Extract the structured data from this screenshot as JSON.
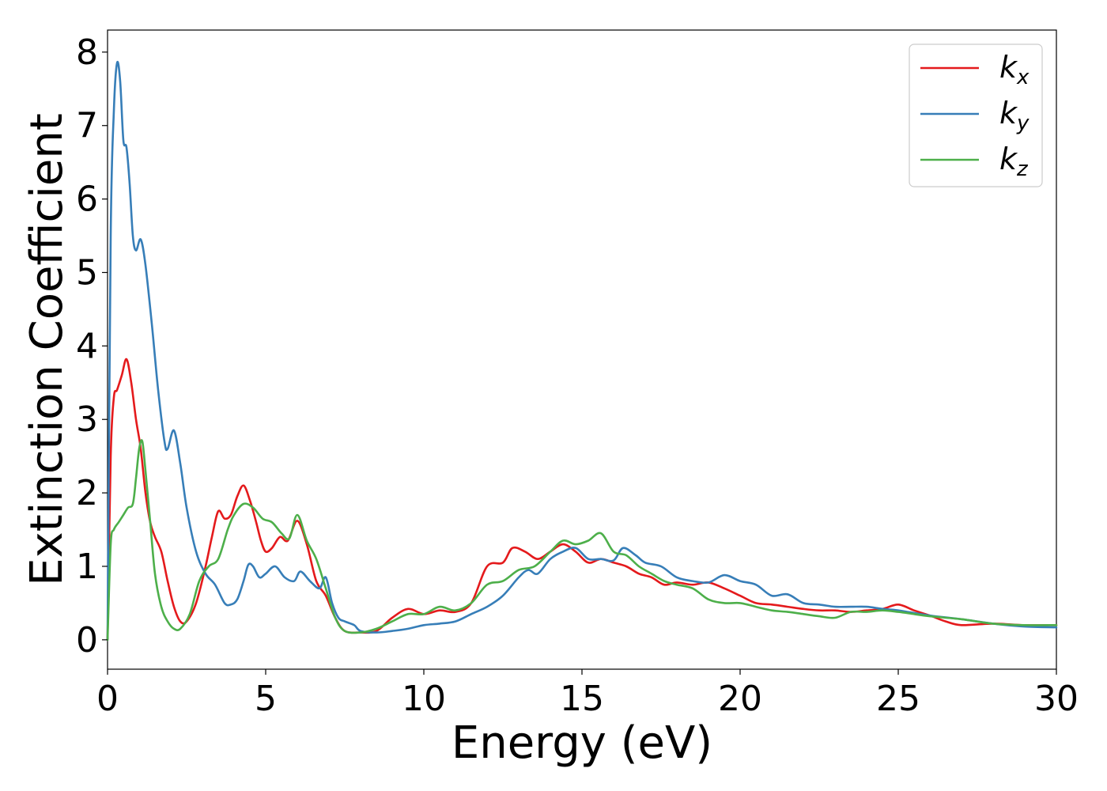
{
  "chart_data": {
    "type": "line",
    "xlabel": "Energy (eV)",
    "ylabel": "Extinction Coefficient",
    "xlim": [
      0,
      30
    ],
    "ylim": [
      -0.4,
      8.3
    ],
    "xticks": [
      0,
      5,
      10,
      15,
      20,
      25,
      30
    ],
    "yticks": [
      0,
      1,
      2,
      3,
      4,
      5,
      6,
      7,
      8
    ],
    "grid": false,
    "legend_position": "top-right",
    "series": [
      {
        "name": "k",
        "subscript": "x",
        "color": "#e41a1c",
        "x": [
          0,
          0.1,
          0.2,
          0.3,
          0.45,
          0.6,
          0.75,
          0.9,
          1.05,
          1.2,
          1.35,
          1.5,
          1.7,
          1.9,
          2.1,
          2.3,
          2.5,
          2.8,
          3.1,
          3.3,
          3.5,
          3.7,
          3.9,
          4.1,
          4.3,
          4.5,
          4.7,
          4.85,
          5.0,
          5.2,
          5.45,
          5.7,
          6.0,
          6.3,
          6.6,
          6.9,
          7.2,
          7.5,
          8.0,
          8.5,
          9.0,
          9.5,
          10.0,
          10.5,
          11.0,
          11.5,
          12.0,
          12.5,
          12.8,
          13.2,
          13.6,
          14.0,
          14.4,
          14.8,
          15.2,
          15.6,
          16.0,
          16.4,
          16.8,
          17.2,
          17.6,
          18.0,
          18.5,
          19.0,
          19.5,
          20.0,
          20.5,
          21.0,
          21.5,
          22.0,
          22.5,
          23.0,
          23.5,
          24.0,
          24.5,
          25.0,
          25.5,
          26.0,
          26.5,
          27.0,
          28.0,
          29.0,
          30.0
        ],
        "y": [
          0,
          2.5,
          3.3,
          3.4,
          3.6,
          3.82,
          3.5,
          3.0,
          2.6,
          2.0,
          1.6,
          1.4,
          1.2,
          0.8,
          0.45,
          0.25,
          0.25,
          0.5,
          1.0,
          1.4,
          1.75,
          1.65,
          1.7,
          1.95,
          2.1,
          1.9,
          1.6,
          1.35,
          1.2,
          1.25,
          1.4,
          1.35,
          1.62,
          1.3,
          0.8,
          0.6,
          0.3,
          0.12,
          0.1,
          0.12,
          0.3,
          0.42,
          0.35,
          0.4,
          0.38,
          0.5,
          1.0,
          1.05,
          1.25,
          1.2,
          1.1,
          1.2,
          1.3,
          1.2,
          1.05,
          1.1,
          1.05,
          1.0,
          0.9,
          0.85,
          0.75,
          0.78,
          0.75,
          0.78,
          0.7,
          0.6,
          0.5,
          0.48,
          0.45,
          0.42,
          0.4,
          0.4,
          0.38,
          0.4,
          0.42,
          0.48,
          0.4,
          0.33,
          0.25,
          0.2,
          0.22,
          0.2,
          0.2
        ]
      },
      {
        "name": "k",
        "subscript": "y",
        "color": "#377eb8",
        "x": [
          0,
          0.1,
          0.2,
          0.3,
          0.4,
          0.5,
          0.6,
          0.7,
          0.8,
          0.9,
          1.05,
          1.2,
          1.4,
          1.6,
          1.8,
          1.9,
          2.1,
          2.3,
          2.5,
          2.8,
          3.1,
          3.4,
          3.7,
          3.9,
          4.1,
          4.3,
          4.45,
          4.6,
          4.8,
          5.0,
          5.3,
          5.6,
          5.9,
          6.1,
          6.4,
          6.7,
          6.9,
          7.1,
          7.3,
          7.5,
          7.8,
          8.0,
          8.5,
          9.0,
          9.5,
          10.0,
          10.5,
          11.0,
          11.5,
          12.0,
          12.5,
          13.0,
          13.3,
          13.6,
          14.0,
          14.4,
          14.8,
          15.2,
          15.6,
          16.0,
          16.3,
          16.7,
          17.0,
          17.5,
          18.0,
          18.5,
          19.0,
          19.5,
          20.0,
          20.5,
          21.0,
          21.5,
          22.0,
          22.5,
          23.0,
          23.5,
          24.0,
          24.5,
          25.0,
          26.0,
          27.0,
          28.0,
          29.0,
          30.0
        ],
        "y": [
          0,
          5.5,
          7.2,
          7.85,
          7.6,
          6.8,
          6.7,
          6.2,
          5.5,
          5.3,
          5.45,
          5.1,
          4.3,
          3.4,
          2.7,
          2.6,
          2.85,
          2.4,
          1.8,
          1.2,
          0.9,
          0.75,
          0.5,
          0.48,
          0.55,
          0.8,
          1.02,
          1.0,
          0.85,
          0.9,
          1.0,
          0.85,
          0.8,
          0.93,
          0.8,
          0.7,
          0.85,
          0.5,
          0.3,
          0.25,
          0.2,
          0.12,
          0.1,
          0.12,
          0.15,
          0.2,
          0.22,
          0.25,
          0.35,
          0.45,
          0.6,
          0.85,
          0.95,
          0.9,
          1.1,
          1.2,
          1.25,
          1.1,
          1.1,
          1.08,
          1.25,
          1.15,
          1.05,
          1.0,
          0.85,
          0.8,
          0.78,
          0.88,
          0.8,
          0.75,
          0.6,
          0.62,
          0.5,
          0.48,
          0.45,
          0.45,
          0.45,
          0.42,
          0.4,
          0.33,
          0.28,
          0.22,
          0.18,
          0.17
        ]
      },
      {
        "name": "k",
        "subscript": "z",
        "color": "#4daf4a",
        "x": [
          0,
          0.1,
          0.2,
          0.35,
          0.5,
          0.65,
          0.8,
          0.9,
          1.0,
          1.1,
          1.2,
          1.35,
          1.5,
          1.7,
          1.9,
          2.1,
          2.3,
          2.6,
          2.9,
          3.2,
          3.5,
          3.8,
          4.0,
          4.3,
          4.6,
          4.9,
          5.2,
          5.5,
          5.75,
          6.0,
          6.3,
          6.6,
          6.9,
          7.2,
          7.5,
          8.0,
          8.5,
          9.0,
          9.5,
          10.0,
          10.5,
          11.0,
          11.5,
          12.0,
          12.5,
          13.0,
          13.5,
          14.0,
          14.4,
          14.8,
          15.2,
          15.6,
          16.0,
          16.4,
          16.8,
          17.2,
          17.6,
          18.0,
          18.5,
          19.0,
          19.5,
          20.0,
          20.5,
          21.0,
          21.5,
          22.0,
          22.5,
          23.0,
          23.5,
          24.0,
          24.5,
          25.0,
          25.5,
          26.0,
          27.0,
          28.0,
          29.0,
          30.0
        ],
        "y": [
          0,
          1.3,
          1.5,
          1.6,
          1.7,
          1.8,
          1.85,
          2.2,
          2.6,
          2.7,
          2.3,
          1.6,
          0.9,
          0.45,
          0.25,
          0.15,
          0.15,
          0.35,
          0.8,
          1.0,
          1.1,
          1.5,
          1.7,
          1.85,
          1.8,
          1.65,
          1.6,
          1.45,
          1.38,
          1.7,
          1.35,
          1.1,
          0.7,
          0.3,
          0.12,
          0.1,
          0.15,
          0.25,
          0.35,
          0.35,
          0.45,
          0.4,
          0.5,
          0.75,
          0.8,
          0.95,
          1.0,
          1.2,
          1.35,
          1.3,
          1.35,
          1.45,
          1.2,
          1.15,
          1.0,
          0.9,
          0.8,
          0.75,
          0.7,
          0.55,
          0.5,
          0.5,
          0.45,
          0.4,
          0.38,
          0.35,
          0.32,
          0.3,
          0.38,
          0.38,
          0.4,
          0.38,
          0.35,
          0.32,
          0.28,
          0.22,
          0.2,
          0.2
        ]
      }
    ]
  }
}
